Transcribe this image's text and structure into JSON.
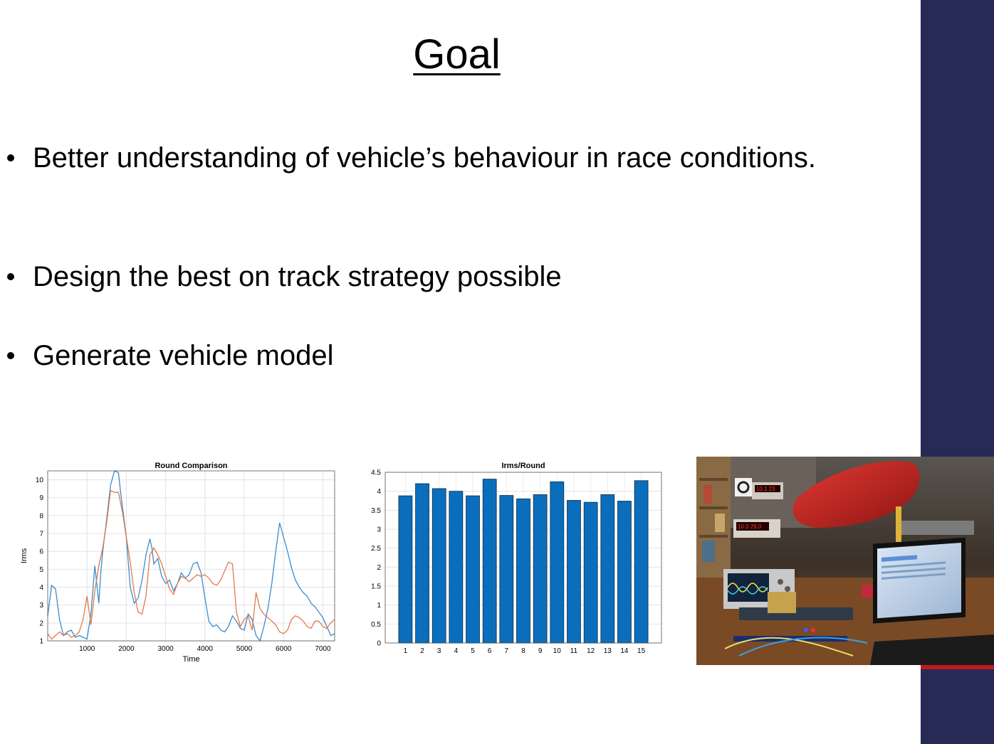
{
  "slide": {
    "title": "Goal",
    "bullets": [
      "Better understanding of vehicle’s behaviour in race conditions.",
      "Design the best on track strategy possible",
      "Generate vehicle model"
    ]
  },
  "colors": {
    "sidebar": "#272a55",
    "accent_red": "#c01a1a",
    "series_blue": "#3a8ccf",
    "series_orange": "#e07a4a",
    "bar_blue": "#0a6ebd"
  },
  "photo": {
    "panel_meter_1": "10.1 23",
    "panel_meter_2": "10.0 29.0"
  },
  "chart_data": [
    {
      "type": "line",
      "title": "Round Comparison",
      "xlabel": "Time",
      "ylabel": "Irms",
      "xlim": [
        0,
        7300
      ],
      "ylim": [
        1,
        10.5
      ],
      "xticks": [
        1000,
        2000,
        3000,
        4000,
        5000,
        6000,
        7000
      ],
      "yticks": [
        1,
        2,
        3,
        4,
        5,
        6,
        7,
        8,
        9,
        10
      ],
      "grid": true,
      "series": [
        {
          "color": "#3a8ccf",
          "x": [
            0,
            100,
            200,
            300,
            400,
            500,
            600,
            700,
            800,
            900,
            1000,
            1100,
            1200,
            1300,
            1350,
            1400,
            1500,
            1600,
            1700,
            1800,
            1850,
            1900,
            2000,
            2100,
            2200,
            2300,
            2400,
            2500,
            2600,
            2650,
            2700,
            2800,
            2900,
            3000,
            3100,
            3200,
            3300,
            3400,
            3500,
            3600,
            3700,
            3800,
            3900,
            4000,
            4100,
            4200,
            4300,
            4400,
            4500,
            4600,
            4700,
            4800,
            4900,
            5000,
            5100,
            5200,
            5300,
            5400,
            5500,
            5600,
            5700,
            5800,
            5900,
            6000,
            6100,
            6200,
            6300,
            6400,
            6500,
            6600,
            6700,
            6800,
            6900,
            7000,
            7100,
            7200,
            7300
          ],
          "y": [
            2.4,
            4.1,
            3.9,
            2.2,
            1.3,
            1.5,
            1.6,
            1.2,
            1.3,
            1.2,
            1.1,
            2.5,
            5.2,
            3.1,
            4.8,
            6.0,
            7.8,
            9.7,
            10.5,
            10.4,
            9.4,
            8.5,
            6.8,
            4.0,
            3.1,
            3.4,
            4.4,
            5.8,
            6.7,
            6.2,
            5.3,
            5.6,
            4.6,
            4.2,
            4.4,
            3.8,
            4.2,
            4.8,
            4.5,
            4.7,
            5.3,
            5.4,
            4.8,
            3.4,
            2.1,
            1.8,
            1.9,
            1.6,
            1.5,
            1.8,
            2.4,
            2.1,
            1.7,
            1.6,
            2.5,
            2.2,
            1.3,
            0.9,
            1.8,
            2.8,
            4.2,
            6.0,
            7.6,
            6.8,
            6.0,
            5.1,
            4.4,
            4.0,
            3.7,
            3.5,
            3.1,
            2.9,
            2.6,
            2.3,
            1.8,
            1.3,
            1.4
          ]
        },
        {
          "color": "#e07a4a",
          "x": [
            0,
            100,
            200,
            300,
            400,
            500,
            600,
            700,
            800,
            900,
            1000,
            1100,
            1200,
            1300,
            1400,
            1500,
            1600,
            1700,
            1800,
            1900,
            2000,
            2100,
            2200,
            2300,
            2400,
            2500,
            2600,
            2700,
            2800,
            2900,
            3000,
            3100,
            3200,
            3300,
            3400,
            3500,
            3600,
            3700,
            3800,
            3900,
            4000,
            4100,
            4200,
            4300,
            4400,
            4500,
            4600,
            4700,
            4800,
            4900,
            5000,
            5100,
            5200,
            5300,
            5400,
            5500,
            5600,
            5700,
            5800,
            5900,
            6000,
            6100,
            6200,
            6300,
            6400,
            6500,
            6600,
            6700,
            6800,
            6900,
            7000,
            7100,
            7200,
            7300
          ],
          "y": [
            1.4,
            1.1,
            1.3,
            1.5,
            1.3,
            1.4,
            1.2,
            1.3,
            1.5,
            2.2,
            3.5,
            1.9,
            3.8,
            5.2,
            6.2,
            7.6,
            9.4,
            9.3,
            9.3,
            8.2,
            6.8,
            5.4,
            3.7,
            2.6,
            2.5,
            3.5,
            5.8,
            6.2,
            5.8,
            5.3,
            4.6,
            3.9,
            3.6,
            4.2,
            4.6,
            4.5,
            4.3,
            4.5,
            4.7,
            4.6,
            4.7,
            4.5,
            4.2,
            4.1,
            4.4,
            4.9,
            5.4,
            5.3,
            2.6,
            1.8,
            2.2,
            2.4,
            1.6,
            3.7,
            2.8,
            2.5,
            2.3,
            2.1,
            1.9,
            1.5,
            1.4,
            1.6,
            2.2,
            2.4,
            2.3,
            2.1,
            1.8,
            1.7,
            2.1,
            2.1,
            1.8,
            1.7,
            2.0,
            2.2
          ]
        }
      ]
    },
    {
      "type": "bar",
      "title": "Irms/Round",
      "categories": [
        "1",
        "2",
        "3",
        "4",
        "5",
        "6",
        "7",
        "8",
        "9",
        "10",
        "11",
        "12",
        "13",
        "14",
        "15"
      ],
      "values": [
        3.88,
        4.2,
        4.07,
        4.0,
        3.88,
        4.32,
        3.89,
        3.8,
        3.91,
        4.25,
        3.76,
        3.71,
        3.91,
        3.74,
        4.28
      ],
      "yticks": [
        "4.5",
        "4",
        "3.5",
        "3",
        "2.5",
        "2",
        "1.5",
        "1",
        "0.5",
        "0"
      ],
      "ylim": [
        0,
        4.5
      ],
      "grid": true,
      "color": "#0a6ebd"
    }
  ]
}
